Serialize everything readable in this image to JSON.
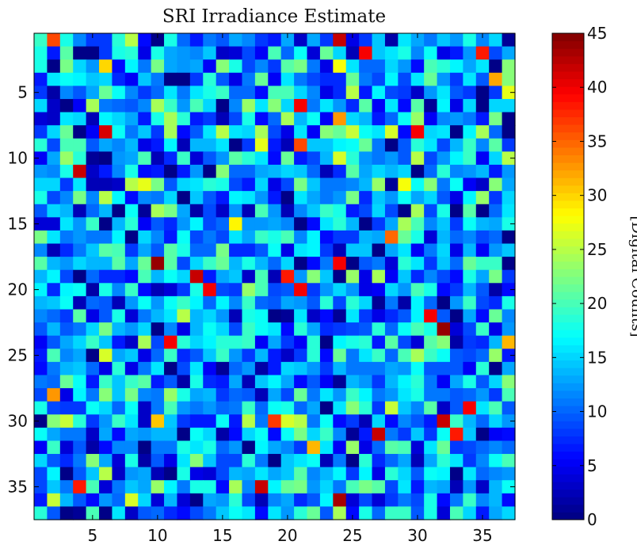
{
  "chart_data": {
    "type": "heatmap",
    "title": "SRI Irradiance Estimate",
    "xlabel": "",
    "ylabel": "",
    "colorbar_label": "[Digital Counts]",
    "colormap": "jet",
    "rows": 37,
    "cols": 37,
    "xlim": [
      0.5,
      37.5
    ],
    "ylim": [
      0.5,
      37.5
    ],
    "x_ticks": [
      5,
      10,
      15,
      20,
      25,
      30,
      35
    ],
    "y_ticks": [
      5,
      10,
      15,
      20,
      25,
      30,
      35
    ],
    "y_direction": "reversed",
    "clim": [
      0,
      45
    ],
    "colorbar_ticks": [
      0,
      5,
      10,
      15,
      20,
      25,
      30,
      35,
      40,
      45
    ],
    "random_seed": 20240513,
    "value_distribution": {
      "mean": 12,
      "sd": 6.5,
      "min": 0,
      "max": 45
    },
    "notable_values": [
      {
        "row": 1,
        "col": 2,
        "value": 36
      },
      {
        "row": 1,
        "col": 24,
        "value": 42
      },
      {
        "row": 2,
        "col": 26,
        "value": 40
      },
      {
        "row": 2,
        "col": 35,
        "value": 38
      },
      {
        "row": 4,
        "col": 36,
        "value": 32
      },
      {
        "row": 6,
        "col": 21,
        "value": 40
      },
      {
        "row": 7,
        "col": 24,
        "value": 33
      },
      {
        "row": 8,
        "col": 6,
        "value": 41
      },
      {
        "row": 8,
        "col": 30,
        "value": 40
      },
      {
        "row": 9,
        "col": 21,
        "value": 36
      },
      {
        "row": 11,
        "col": 4,
        "value": 42
      },
      {
        "row": 16,
        "col": 28,
        "value": 35
      },
      {
        "row": 18,
        "col": 10,
        "value": 44
      },
      {
        "row": 18,
        "col": 24,
        "value": 40
      },
      {
        "row": 19,
        "col": 13,
        "value": 42
      },
      {
        "row": 19,
        "col": 20,
        "value": 38
      },
      {
        "row": 20,
        "col": 14,
        "value": 40
      },
      {
        "row": 20,
        "col": 21,
        "value": 40
      },
      {
        "row": 22,
        "col": 31,
        "value": 40
      },
      {
        "row": 23,
        "col": 32,
        "value": 44
      },
      {
        "row": 24,
        "col": 11,
        "value": 40
      },
      {
        "row": 28,
        "col": 2,
        "value": 33
      },
      {
        "row": 29,
        "col": 34,
        "value": 40
      },
      {
        "row": 30,
        "col": 19,
        "value": 37
      },
      {
        "row": 30,
        "col": 32,
        "value": 42
      },
      {
        "row": 31,
        "col": 27,
        "value": 42
      },
      {
        "row": 31,
        "col": 33,
        "value": 38
      },
      {
        "row": 35,
        "col": 4,
        "value": 38
      },
      {
        "row": 35,
        "col": 18,
        "value": 42
      },
      {
        "row": 36,
        "col": 24,
        "value": 43
      }
    ]
  }
}
